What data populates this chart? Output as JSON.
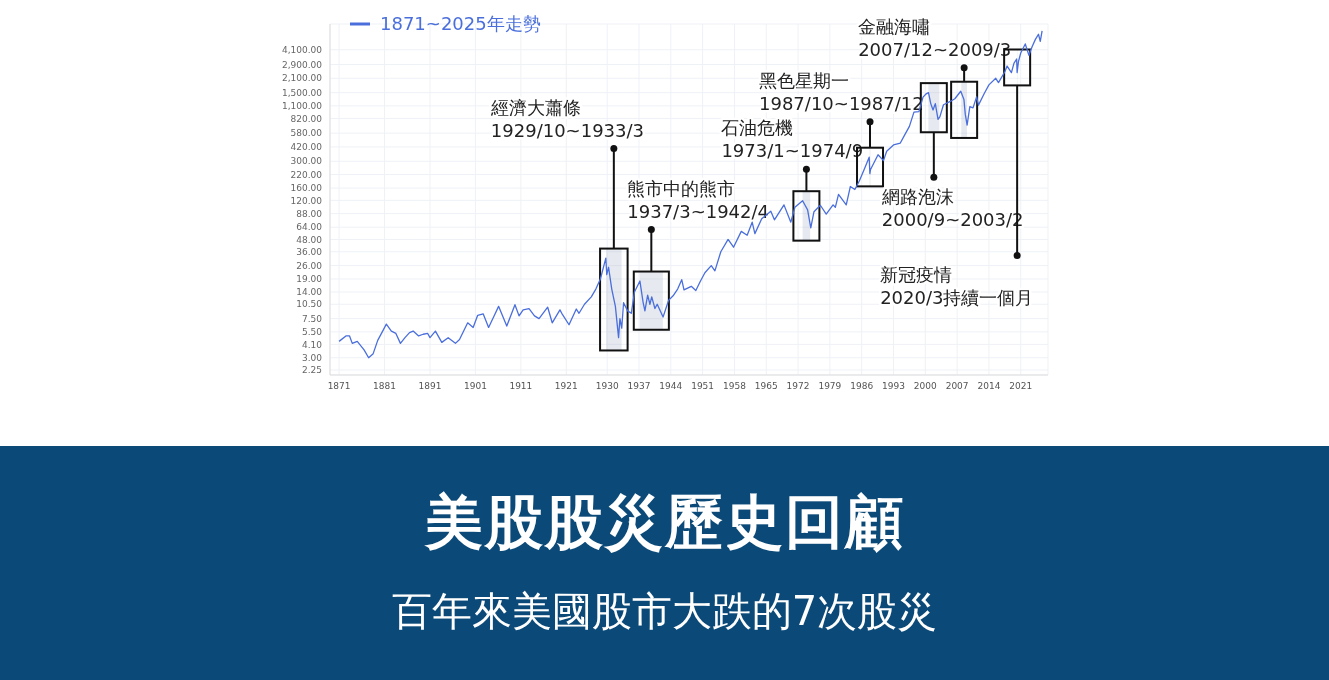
{
  "chart_data": {
    "type": "line",
    "title": "美股股災歷史回顧",
    "subtitle": "百年來美國股市大跌的7次股災",
    "log": true,
    "grid": true,
    "legend": "top left",
    "xlim": [
      1869,
      2027
    ],
    "xticks": [
      1871,
      1881,
      1891,
      1901,
      1911,
      1921,
      1930,
      1937,
      1944,
      1951,
      1958,
      1965,
      1972,
      1979,
      1986,
      1993,
      2000,
      2007,
      2014,
      2021
    ],
    "ylim": [
      2,
      7500
    ],
    "yticks": [
      {
        "value": 2.25,
        "label": "2.25"
      },
      {
        "value": 3,
        "label": "3.00"
      },
      {
        "value": 4.1,
        "label": "4.10"
      },
      {
        "value": 5.5,
        "label": "5.50"
      },
      {
        "value": 7.5,
        "label": "7.50"
      },
      {
        "value": 10.5,
        "label": "10.50"
      },
      {
        "value": 14,
        "label": "14.00"
      },
      {
        "value": 19,
        "label": "19.00"
      },
      {
        "value": 26,
        "label": "26.00"
      },
      {
        "value": 36,
        "label": "36.00"
      },
      {
        "value": 48,
        "label": "48.00"
      },
      {
        "value": 64,
        "label": "64.00"
      },
      {
        "value": 88,
        "label": "88.00"
      },
      {
        "value": 120,
        "label": "120.00"
      },
      {
        "value": 160,
        "label": "160.00"
      },
      {
        "value": 220,
        "label": "220.00"
      },
      {
        "value": 300,
        "label": "300.00"
      },
      {
        "value": 420,
        "label": "420.00"
      },
      {
        "value": 580,
        "label": "580.00"
      },
      {
        "value": 820,
        "label": "820.00"
      },
      {
        "value": 1100,
        "label": "1,100.00"
      },
      {
        "value": 1500,
        "label": "1,500.00"
      },
      {
        "value": 2100,
        "label": "2,100.00"
      },
      {
        "value": 2900,
        "label": "2,900.00"
      },
      {
        "value": 4100,
        "label": "4,100.00"
      }
    ],
    "series": [
      {
        "name": "1871~2025年走勢",
        "color": "#4a6fdc",
        "x": [
          1871.0,
          1872.5,
          1873.3,
          1873.9,
          1875.0,
          1876.5,
          1877.5,
          1878.5,
          1879.5,
          1880.5,
          1881.4,
          1882.5,
          1883.5,
          1884.5,
          1885.5,
          1886.5,
          1887.3,
          1888.5,
          1889.5,
          1890.5,
          1891.0,
          1892.2,
          1893.6,
          1895.0,
          1896.6,
          1897.5,
          1899.3,
          1900.5,
          1901.5,
          1902.7,
          1903.9,
          1905.0,
          1906.1,
          1907.9,
          1909.7,
          1910.6,
          1911.5,
          1912.8,
          1914.0,
          1915.0,
          1916.9,
          1917.9,
          1919.6,
          1920.0,
          1921.6,
          1923.2,
          1923.8,
          1925.0,
          1926.5,
          1927.5,
          1928.5,
          1929.7,
          1929.9,
          1930.3,
          1931.0,
          1931.8,
          1932.5,
          1932.8,
          1933.2,
          1933.6,
          1934.5,
          1935.3,
          1936.0,
          1937.2,
          1937.9,
          1938.3,
          1938.9,
          1939.4,
          1939.8,
          1940.5,
          1941.0,
          1942.3,
          1943.5,
          1944.5,
          1945.5,
          1946.4,
          1946.9,
          1948.5,
          1949.5,
          1950.5,
          1951.5,
          1952.9,
          1953.7,
          1955.0,
          1956.6,
          1957.8,
          1959.5,
          1960.8,
          1961.9,
          1962.5,
          1964.0,
          1966.0,
          1966.8,
          1968.9,
          1970.4,
          1971.3,
          1973.0,
          1974.1,
          1974.8,
          1975.5,
          1976.9,
          1978.2,
          1979.7,
          1980.2,
          1980.9,
          1982.6,
          1983.5,
          1984.5,
          1985.5,
          1986.5,
          1987.65,
          1987.8,
          1987.95,
          1989.6,
          1990.8,
          1991.5,
          1993.0,
          1994.5,
          1995.5,
          1996.5,
          1997.5,
          1998.6,
          1999.5,
          2000.2,
          2000.7,
          2001.2,
          2001.7,
          2002.2,
          2002.8,
          2003.2,
          2004.0,
          2005.5,
          2006.5,
          2007.8,
          2008.5,
          2008.8,
          2009.2,
          2009.8,
          2010.5,
          2011.3,
          2011.7,
          2013.0,
          2014.0,
          2015.5,
          2016.1,
          2017.5,
          2018.0,
          2018.95,
          2019.5,
          2020.1,
          2020.2,
          2020.5,
          2021.0,
          2022.0,
          2022.8,
          2023.5,
          2024.2,
          2024.9,
          2025.3,
          2025.7
        ],
        "values": [
          4.4,
          5.0,
          5.0,
          4.2,
          4.4,
          3.6,
          3.0,
          3.3,
          4.5,
          5.5,
          6.6,
          5.6,
          5.3,
          4.2,
          4.8,
          5.4,
          5.6,
          5.0,
          5.2,
          5.3,
          4.8,
          5.6,
          4.3,
          4.8,
          4.2,
          4.6,
          6.8,
          6.1,
          8.1,
          8.4,
          6.1,
          7.8,
          10,
          6.3,
          10.4,
          8,
          9.2,
          9.5,
          8,
          7.5,
          9.8,
          6.8,
          9.2,
          8.5,
          6.5,
          9.4,
          8.5,
          10.5,
          12.5,
          15,
          19,
          31,
          21,
          25,
          15,
          10,
          4.8,
          7.5,
          6,
          10.9,
          9,
          8.5,
          14,
          18.1,
          11,
          9,
          13,
          10.5,
          12.5,
          9.5,
          10.5,
          7.8,
          11.5,
          12.8,
          15,
          18.7,
          14.7,
          16,
          14.5,
          18,
          22,
          26,
          23,
          36,
          48,
          40,
          58,
          53,
          72,
          55,
          78,
          93,
          76,
          108,
          72,
          102,
          119,
          96,
          63,
          92,
          107,
          87,
          108,
          102,
          138,
          108,
          166,
          155,
          190,
          245,
          330,
          225,
          247,
          350,
          305,
          380,
          440,
          460,
          560,
          680,
          950,
          960,
          1350,
          1460,
          1500,
          1160,
          1000,
          1160,
          800,
          850,
          1130,
          1220,
          1300,
          1550,
          1280,
          900,
          700,
          1080,
          1050,
          1360,
          1120,
          1480,
          1800,
          2100,
          1900,
          2450,
          2800,
          2400,
          2980,
          3300,
          2400,
          3100,
          3800,
          4700,
          3600,
          4400,
          5200,
          5900,
          5000,
          6400
        ]
      }
    ],
    "bands": [
      {
        "axis": "x",
        "from": 1929.75,
        "to": 1933.17,
        "label": "經濟大蕭條\n1929/10~1933/3"
      },
      {
        "axis": "x",
        "from": 1937.17,
        "to": 1942.25,
        "label": "熊市中的熊市\n1937/3~1942/4"
      },
      {
        "axis": "x",
        "from": 1973.0,
        "to": 1974.67,
        "label": "石油危機\n1973/1~1974/9"
      },
      {
        "axis": "x",
        "from": 1987.75,
        "to": 1987.92,
        "label": "黑色星期一\n1987/10~1987/12"
      },
      {
        "axis": "x",
        "from": 2000.67,
        "to": 2003.08,
        "label": "網路泡沫\n2000/9~2003/2"
      },
      {
        "axis": "x",
        "from": 2007.92,
        "to": 2009.17,
        "label": "金融海嘯\n2007/12~2009/3"
      },
      {
        "axis": "x",
        "from": 2020.17,
        "to": 2020.25,
        "label": "新冠疫情\n2020/3持續一個月"
      }
    ]
  }
}
